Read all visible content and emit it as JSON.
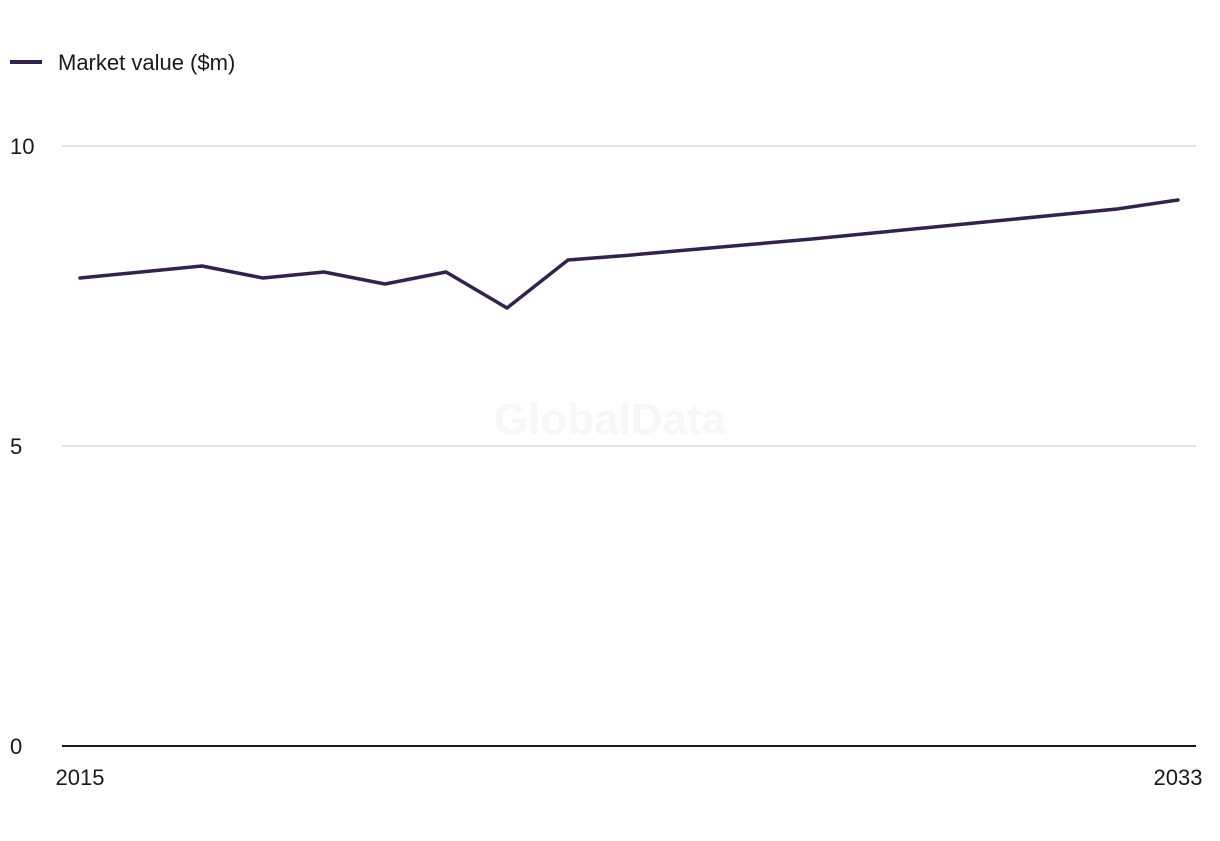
{
  "legend": {
    "series_label": "Market value ($m)"
  },
  "watermark": "GlobalData",
  "colors": {
    "series": "#33224d",
    "grid": "#d9d9d9",
    "axis": "#1a1a1a"
  },
  "chart_data": {
    "type": "line",
    "title": "",
    "xlabel": "",
    "ylabel": "",
    "x": [
      2015,
      2016,
      2017,
      2018,
      2019,
      2020,
      2021,
      2022,
      2023,
      2024,
      2025,
      2026,
      2027,
      2028,
      2029,
      2030,
      2031,
      2032,
      2033
    ],
    "series": [
      {
        "name": "Market value ($m)",
        "values": [
          7.8,
          7.9,
          8.0,
          7.8,
          7.9,
          7.7,
          7.9,
          7.3,
          8.1,
          8.18,
          8.27,
          8.36,
          8.45,
          8.55,
          8.65,
          8.75,
          8.85,
          8.95,
          9.1
        ]
      }
    ],
    "ylim": [
      0,
      10
    ],
    "yticks": [
      "0",
      "5",
      "10"
    ],
    "xticks": [
      "2015",
      "2033"
    ],
    "grid": true,
    "legend_position": "top-left"
  }
}
